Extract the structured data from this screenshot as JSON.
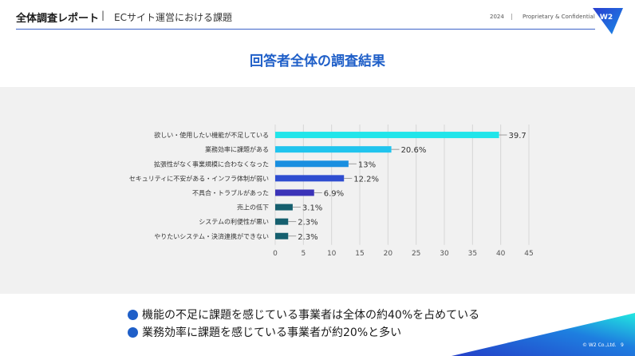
{
  "header": {
    "title": "全体調査レポート",
    "separator": "|",
    "subtitle": "ECサイト運営における課題",
    "year": "2024",
    "separator2": "|",
    "confidential": "Proprietary & Confidential",
    "logo_text": "W2"
  },
  "main_title": "回答者全体の調査結果",
  "chart_data": {
    "type": "bar",
    "orientation": "horizontal",
    "categories": [
      "欲しい・使用したい機能が不足している",
      "業務効率に課題がある",
      "拡張性がなく事業規模に合わなくなった",
      "セキュリティに不安がある・インフラ体制が弱い",
      "不具合・トラブルがあった",
      "売上の低下",
      "システムの利便性が悪い",
      "やりたいシステム・決済連携ができない"
    ],
    "values": [
      39.7,
      20.6,
      13,
      12.2,
      6.9,
      3.1,
      2.3,
      2.3
    ],
    "data_labels": [
      "39.7",
      "20.6%",
      "13%",
      "12.2%",
      "6.9%",
      "3.1%",
      "2.3%",
      "2.3%"
    ],
    "bar_colors": [
      "#22e5ea",
      "#20c4ee",
      "#1a8fe0",
      "#2f4dd0",
      "#3b33b8",
      "#155f6e",
      "#155f6e",
      "#155f6e"
    ],
    "xlim": [
      0,
      45
    ],
    "xticks": [
      0,
      5,
      10,
      15,
      20,
      25,
      30,
      35,
      40,
      45
    ],
    "grid": true
  },
  "bullets": [
    "機能の不足に課題を感じている事業者は全体の約40%を占めている",
    "業務効率に課題を感じている事業者が約20%と多い"
  ],
  "footer": {
    "copyright": "© W2 Co.,Ltd.",
    "page": "9"
  },
  "colors": {
    "accent": "#1f5fc8",
    "chart_bg": "#f1f1f1"
  }
}
